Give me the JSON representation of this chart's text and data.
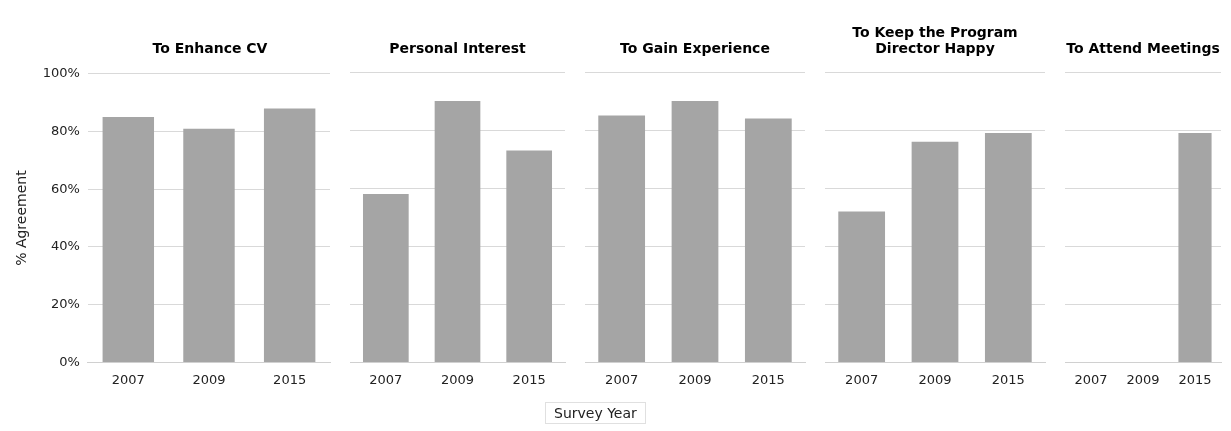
{
  "chart_data": [
    {
      "type": "bar",
      "title": "To Enhance CV",
      "ylabel": "% Agreement",
      "categories": [
        "2007",
        "2009",
        "2015"
      ],
      "values": [
        85,
        81,
        88
      ],
      "color": "#a5a5a5",
      "ylim": [
        0,
        100
      ],
      "yticks": [
        {
          "value": 0,
          "label": "0%"
        },
        {
          "value": 20,
          "label": "20%"
        },
        {
          "value": 40,
          "label": "40%"
        },
        {
          "value": 60,
          "label": "60%"
        },
        {
          "value": 80,
          "label": "80%"
        },
        {
          "value": 100,
          "label": "100%"
        }
      ],
      "grid": "y"
    },
    {
      "type": "bar",
      "title": "Personal Interest",
      "categories": [
        "2007",
        "2009",
        "2015"
      ],
      "values": [
        58,
        90,
        73
      ],
      "color": "#a5a5a5",
      "ylim": [
        0,
        100
      ],
      "yticks": [
        0,
        20,
        40,
        60,
        80,
        100
      ],
      "grid": "y",
      "tick_labels": "x"
    },
    {
      "type": "bar",
      "title": "To Gain Experience",
      "xlabel": "Survey Year",
      "categories": [
        "2007",
        "2009",
        "2015"
      ],
      "values": [
        85,
        90,
        84
      ],
      "color": "#a5a5a5",
      "ylim": [
        0,
        100
      ],
      "yticks": [
        0,
        20,
        40,
        60,
        80,
        100
      ],
      "grid": "y",
      "tick_labels": "x"
    },
    {
      "type": "bar",
      "title": "To Keep the Program Director Happy",
      "categories": [
        "2007",
        "2009",
        "2015"
      ],
      "values": [
        52,
        76,
        79
      ],
      "color": "#a5a5a5",
      "ylim": [
        0,
        100
      ],
      "yticks": [
        0,
        20,
        40,
        60,
        80,
        100
      ],
      "grid": "y",
      "tick_labels": "x"
    },
    {
      "type": "bar",
      "title": "To Attend Meetings",
      "categories": [
        "2007",
        "2009",
        "2015"
      ],
      "values": [
        null,
        null,
        79
      ],
      "color": "#a5a5a5",
      "ylim": [
        0,
        100
      ],
      "yticks": [
        0,
        20,
        40,
        60,
        80,
        100
      ],
      "grid": "y",
      "tick_labels": "x"
    }
  ]
}
